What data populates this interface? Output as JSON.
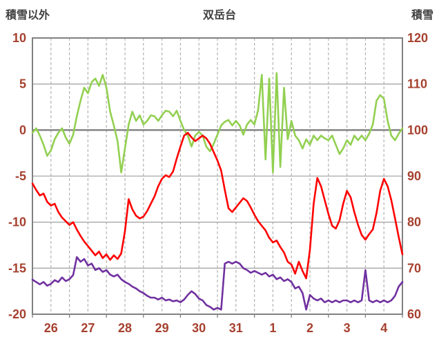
{
  "header": {
    "left_label": "積雪以外",
    "title": "双岳台",
    "right_label": "積雪"
  },
  "chart_data": {
    "type": "line",
    "title": "双岳台",
    "left_axis": {
      "label": "積雪以外",
      "min": -20,
      "max": 10,
      "ticks": [
        10,
        5,
        0,
        -5,
        -10,
        -15,
        -20
      ]
    },
    "right_axis": {
      "label": "積雪",
      "min": 60,
      "max": 120,
      "ticks": [
        120,
        110,
        100,
        90,
        80,
        70,
        60
      ]
    },
    "x_labels": [
      "26",
      "27",
      "28",
      "29",
      "30",
      "31",
      "1",
      "2",
      "3",
      "4"
    ],
    "x_days": 10,
    "grid": {
      "vertical_dashed_every_days": 0.5,
      "horizontal_every_left_units": 5,
      "zero_line_emphasized": true
    },
    "legend": "none",
    "colors": {
      "green_series": "#92d050",
      "red_series": "#ff0000",
      "purple_series": "#7030a0",
      "axis_numbers": "#a6402e",
      "title_text": "#3f3f3f",
      "gridline": "#a6a6a6",
      "gridline_dashed": "#b3b3b3",
      "zero_line": "#7f7f7f",
      "border": "#808080"
    },
    "series": [
      {
        "name": "green-series",
        "color": "#92d050",
        "axis": "left",
        "values": [
          -0.3,
          0.2,
          -0.6,
          -1.6,
          -2.8,
          -2.2,
          -1.0,
          -0.3,
          0.2,
          -0.8,
          -1.5,
          -0.5,
          1.5,
          3.2,
          4.6,
          4.0,
          5.2,
          5.6,
          4.8,
          6.0,
          4.6,
          2.0,
          0.5,
          -1.2,
          -4.6,
          -2.0,
          0.6,
          2.0,
          1.0,
          1.6,
          0.6,
          1.0,
          1.6,
          1.5,
          1.0,
          1.6,
          2.1,
          2.0,
          1.5,
          2.1,
          1.0,
          0.0,
          -0.6,
          -1.8,
          -0.6,
          -0.2,
          -0.6,
          -1.8,
          -2.3,
          -1.5,
          -0.5,
          0.5,
          0.9,
          1.1,
          0.5,
          1.0,
          0.5,
          -0.5,
          0.6,
          1.1,
          0.6,
          2.2,
          6.0,
          -3.2,
          5.6,
          -4.6,
          6.2,
          -4.0,
          4.6,
          -1.0,
          1.0,
          -0.6,
          -1.1,
          -2.0,
          -1.0,
          -1.6,
          -0.6,
          -1.1,
          -0.6,
          -0.9,
          -1.1,
          -0.6,
          -1.6,
          -2.6,
          -2.0,
          -1.1,
          -1.6,
          -0.6,
          -1.1,
          -0.6,
          -1.1,
          -0.4,
          0.6,
          3.2,
          3.8,
          3.4,
          1.0,
          -0.6,
          -1.1,
          -0.4,
          0.2
        ]
      },
      {
        "name": "red-series",
        "color": "#ff0000",
        "axis": "left",
        "values": [
          -5.8,
          -6.5,
          -7.1,
          -6.9,
          -7.8,
          -8.2,
          -8.0,
          -8.9,
          -9.5,
          -9.9,
          -10.3,
          -10.0,
          -10.8,
          -11.5,
          -12.1,
          -12.6,
          -13.1,
          -13.6,
          -13.2,
          -13.9,
          -13.5,
          -14.1,
          -13.6,
          -14.0,
          -13.4,
          -11.0,
          -7.5,
          -8.6,
          -9.3,
          -9.6,
          -9.4,
          -8.8,
          -8.0,
          -7.2,
          -6.1,
          -5.3,
          -4.9,
          -5.1,
          -4.5,
          -3.1,
          -1.8,
          -0.6,
          -0.3,
          -0.8,
          -1.2,
          -0.9,
          -0.6,
          -0.9,
          -1.5,
          -2.4,
          -3.3,
          -4.4,
          -6.5,
          -8.5,
          -8.9,
          -8.4,
          -7.9,
          -7.4,
          -7.7,
          -8.4,
          -9.2,
          -9.9,
          -10.4,
          -10.9,
          -11.7,
          -12.2,
          -12.0,
          -12.7,
          -13.3,
          -14.3,
          -14.6,
          -15.6,
          -14.3,
          -15.3,
          -16.1,
          -13.0,
          -8.0,
          -5.2,
          -6.1,
          -7.6,
          -9.1,
          -10.4,
          -10.7,
          -9.8,
          -8.0,
          -6.6,
          -7.3,
          -8.9,
          -10.3,
          -11.4,
          -11.9,
          -11.3,
          -10.8,
          -9.0,
          -6.6,
          -5.3,
          -6.1,
          -7.6,
          -9.6,
          -11.6,
          -13.5
        ]
      },
      {
        "name": "purple-series",
        "color": "#7030a0",
        "axis": "right",
        "values": [
          67.5,
          67.0,
          66.5,
          67.0,
          66.2,
          66.6,
          67.4,
          67.0,
          68.0,
          67.2,
          67.6,
          68.5,
          72.4,
          71.4,
          72.0,
          70.6,
          71.0,
          69.6,
          70.0,
          69.2,
          69.6,
          68.6,
          68.2,
          68.6,
          67.6,
          67.0,
          66.6,
          66.0,
          65.6,
          65.0,
          64.6,
          64.0,
          63.6,
          63.6,
          63.2,
          63.6,
          63.0,
          63.2,
          62.8,
          63.0,
          62.6,
          63.2,
          64.2,
          65.0,
          64.4,
          63.4,
          63.0,
          62.0,
          61.6,
          61.0,
          61.4,
          61.0,
          71.0,
          71.4,
          71.0,
          71.4,
          71.0,
          70.0,
          69.6,
          69.0,
          69.4,
          69.0,
          68.6,
          69.0,
          68.2,
          68.6,
          67.6,
          68.0,
          67.2,
          67.6,
          67.0,
          65.6,
          66.0,
          64.6,
          61.0,
          64.2,
          63.4,
          63.0,
          63.4,
          62.6,
          63.0,
          62.6,
          63.0,
          62.6,
          63.0,
          63.0,
          62.6,
          63.0,
          62.6,
          63.0,
          69.6,
          63.0,
          62.6,
          63.0,
          62.6,
          63.0,
          62.6,
          63.0,
          64.0,
          66.0,
          67.0
        ]
      }
    ]
  }
}
